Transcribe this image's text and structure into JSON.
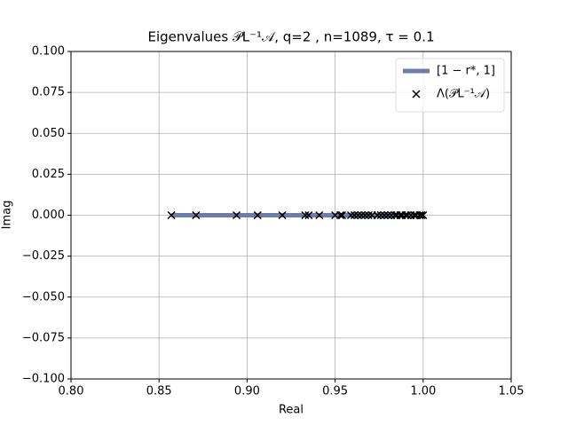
{
  "chart_data": {
    "type": "scatter",
    "title": "Eigenvalues 𝒫L⁻¹𝒜, q=2 , n=1089, τ = 0.1",
    "xlabel": "Real",
    "ylabel": "Imag",
    "xlim": [
      0.8,
      1.05
    ],
    "xticks": [
      {
        "value": 0.8,
        "label": "0.80"
      },
      0.85,
      {
        "value": 0.9,
        "label": "0.90"
      },
      0.95,
      {
        "value": 1.0,
        "label": "1.00"
      },
      1.05
    ],
    "ylim": [
      -0.1,
      0.1
    ],
    "yticks": [
      {
        "value": -0.1,
        "label": "−0.100"
      },
      {
        "value": -0.075,
        "label": "−0.075"
      },
      {
        "value": -0.05,
        "label": "−0.050"
      },
      {
        "value": -0.025,
        "label": "−0.025"
      },
      {
        "value": 0,
        "label": "0.000"
      },
      0.025,
      {
        "value": 0.05,
        "label": "0.050"
      },
      0.075,
      {
        "value": 0.1,
        "label": "0.100"
      }
    ],
    "grid": true,
    "legend": "upper right",
    "series": [
      {
        "name": "[1 − r*, 1]",
        "kind": "line",
        "color": "#6f7ba8",
        "x": [
          0.857,
          1.0
        ],
        "y": [
          0,
          0
        ]
      },
      {
        "name": "Λ(𝒫L⁻¹𝒜)",
        "kind": "scatter",
        "color": "#000000",
        "x": [
          0.857,
          0.871,
          0.894,
          0.906,
          0.92,
          0.933,
          0.935,
          0.941,
          0.95,
          0.953,
          0.954,
          0.959,
          0.961,
          0.963,
          0.965,
          0.967,
          0.969,
          0.971,
          0.974,
          0.976,
          0.978,
          0.98,
          0.982,
          0.984,
          0.985,
          0.987,
          0.988,
          0.99,
          0.991,
          0.993,
          0.995,
          0.996,
          0.998,
          0.999,
          1.0
        ],
        "y": [
          0,
          0,
          0,
          0,
          0,
          0,
          0,
          0,
          0,
          0,
          0,
          0,
          0,
          0,
          0,
          0,
          0,
          0,
          0,
          0,
          0,
          0,
          0,
          0,
          0,
          0,
          0,
          0,
          0,
          0,
          0,
          0,
          0,
          0,
          0
        ]
      }
    ]
  }
}
